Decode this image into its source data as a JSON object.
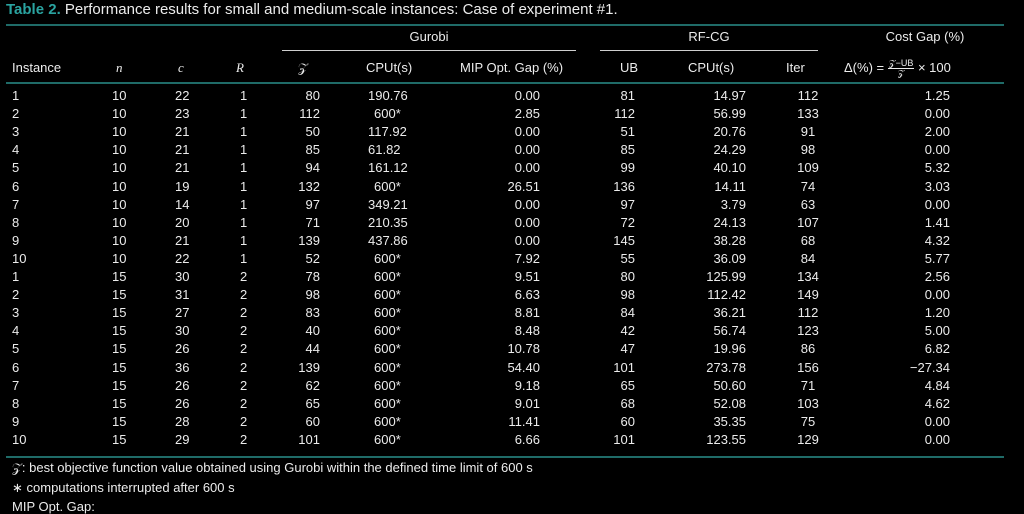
{
  "caption": {
    "label": "Table 2.",
    "text": "Performance results for small and medium-scale instances: Case of experiment #1."
  },
  "groups": {
    "gurobi": "Gurobi",
    "rfcg": "RF-CG",
    "cost_gap": "Cost Gap (%)"
  },
  "columns": {
    "instance": "Instance",
    "n": "n",
    "c": "c",
    "R": "R",
    "Z": "𝒵",
    "cpu_gurobi": "CPUt(s)",
    "mip_gap": "MIP Opt. Gap (%)",
    "ub": "UB",
    "cpu_rfcg": "CPUt(s)",
    "iter": "Iter",
    "delta_lhs": "Δ(%) =",
    "delta_num": "𝒵−UB",
    "delta_den": "𝒵",
    "delta_rhs": "× 100"
  },
  "rows": [
    [
      "1",
      "10",
      "22",
      "1",
      "80",
      "190.76",
      "0.00",
      "81",
      "14.97",
      "112",
      "1.25"
    ],
    [
      "2",
      "10",
      "23",
      "1",
      "112",
      "600*",
      "2.85",
      "112",
      "56.99",
      "133",
      "0.00"
    ],
    [
      "3",
      "10",
      "21",
      "1",
      "50",
      "117.92",
      "0.00",
      "51",
      "20.76",
      "91",
      "2.00"
    ],
    [
      "4",
      "10",
      "21",
      "1",
      "85",
      "61.82",
      "0.00",
      "85",
      "24.29",
      "98",
      "0.00"
    ],
    [
      "5",
      "10",
      "21",
      "1",
      "94",
      "161.12",
      "0.00",
      "99",
      "40.10",
      "109",
      "5.32"
    ],
    [
      "6",
      "10",
      "19",
      "1",
      "132",
      "600*",
      "26.51",
      "136",
      "14.11",
      "74",
      "3.03"
    ],
    [
      "7",
      "10",
      "14",
      "1",
      "97",
      "349.21",
      "0.00",
      "97",
      "3.79",
      "63",
      "0.00"
    ],
    [
      "8",
      "10",
      "20",
      "1",
      "71",
      "210.35",
      "0.00",
      "72",
      "24.13",
      "107",
      "1.41"
    ],
    [
      "9",
      "10",
      "21",
      "1",
      "139",
      "437.86",
      "0.00",
      "145",
      "38.28",
      "68",
      "4.32"
    ],
    [
      "10",
      "10",
      "22",
      "1",
      "52",
      "600*",
      "7.92",
      "55",
      "36.09",
      "84",
      "5.77"
    ],
    [
      "1",
      "15",
      "30",
      "2",
      "78",
      "600*",
      "9.51",
      "80",
      "125.99",
      "134",
      "2.56"
    ],
    [
      "2",
      "15",
      "31",
      "2",
      "98",
      "600*",
      "6.63",
      "98",
      "112.42",
      "149",
      "0.00"
    ],
    [
      "3",
      "15",
      "27",
      "2",
      "83",
      "600*",
      "8.81",
      "84",
      "36.21",
      "112",
      "1.20"
    ],
    [
      "4",
      "15",
      "30",
      "2",
      "40",
      "600*",
      "8.48",
      "42",
      "56.74",
      "123",
      "5.00"
    ],
    [
      "5",
      "15",
      "26",
      "2",
      "44",
      "600*",
      "10.78",
      "47",
      "19.96",
      "86",
      "6.82"
    ],
    [
      "6",
      "15",
      "36",
      "2",
      "139",
      "600*",
      "54.40",
      "101",
      "273.78",
      "156",
      "−27.34"
    ],
    [
      "7",
      "15",
      "26",
      "2",
      "62",
      "600*",
      "9.18",
      "65",
      "50.60",
      "71",
      "4.84"
    ],
    [
      "8",
      "15",
      "26",
      "2",
      "65",
      "600*",
      "9.01",
      "68",
      "52.08",
      "103",
      "4.62"
    ],
    [
      "9",
      "15",
      "28",
      "2",
      "60",
      "600*",
      "11.41",
      "60",
      "35.35",
      "75",
      "0.00"
    ],
    [
      "10",
      "15",
      "29",
      "2",
      "101",
      "600*",
      "6.66",
      "101",
      "123.55",
      "129",
      "0.00"
    ]
  ],
  "notes": [
    "𝒵: best objective function value obtained using Gurobi within the defined time limit of 600 s",
    "∗ computations interrupted after 600 s",
    "MIP Opt. Gap:"
  ],
  "colors": {
    "caption_label": "#2aa3a0",
    "rule": "#1f6b68",
    "background": "#000000",
    "text": "#ececec"
  }
}
